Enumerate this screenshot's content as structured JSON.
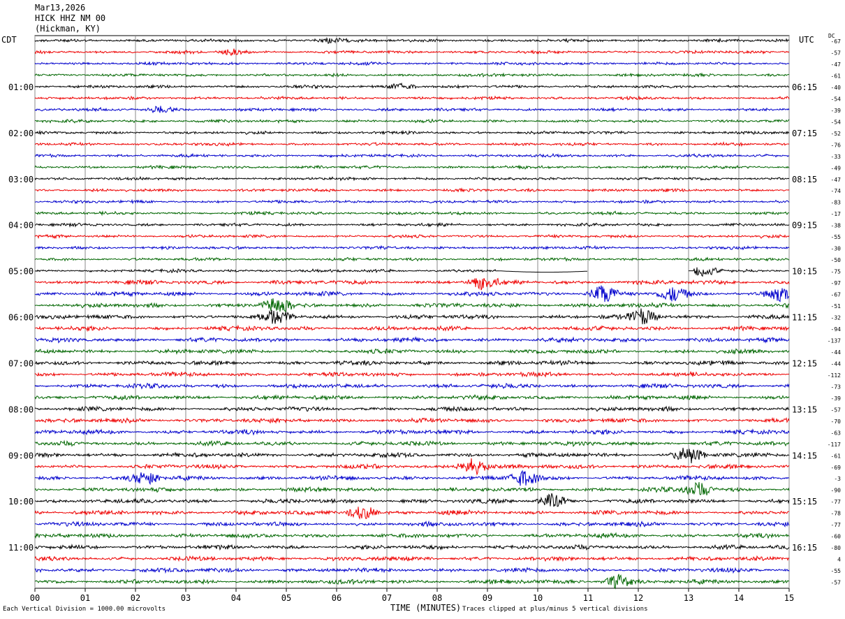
{
  "header": {
    "date": "Mar13,2026",
    "station": "HICK HHZ NM 00",
    "location": "(Hickman, KY)"
  },
  "left_zone": "CDT",
  "right_zone": "UTC",
  "dc_label": "DC",
  "footer": {
    "scale_note": "Each Vertical Division = 1000.00 microvolts",
    "xlabel": "TIME (MINUTES)",
    "clip_note": "Traces clipped at plus/minus 5 vertical divisions"
  },
  "colors": {
    "trace_cycle": [
      "#000000",
      "#ee0000",
      "#0000cc",
      "#006600"
    ],
    "grid": "#888888"
  },
  "chart_data": {
    "type": "line",
    "title": "",
    "xlabel": "TIME (MINUTES)",
    "ylabel": "",
    "xlim": [
      0,
      15
    ],
    "x_ticks": [
      "00",
      "01",
      "02",
      "03",
      "04",
      "05",
      "06",
      "07",
      "08",
      "09",
      "10",
      "11",
      "12",
      "13",
      "14",
      "15"
    ],
    "rows": 48,
    "left_hour_labels": [
      {
        "row": 4,
        "label": "01:00"
      },
      {
        "row": 8,
        "label": "02:00"
      },
      {
        "row": 12,
        "label": "03:00"
      },
      {
        "row": 16,
        "label": "04:00"
      },
      {
        "row": 20,
        "label": "05:00"
      },
      {
        "row": 24,
        "label": "06:00"
      },
      {
        "row": 28,
        "label": "07:00"
      },
      {
        "row": 32,
        "label": "08:00"
      },
      {
        "row": 36,
        "label": "09:00"
      },
      {
        "row": 40,
        "label": "10:00"
      },
      {
        "row": 44,
        "label": "11:00"
      }
    ],
    "right_hour_labels": [
      {
        "row": 4,
        "label": "06:15"
      },
      {
        "row": 8,
        "label": "07:15"
      },
      {
        "row": 12,
        "label": "08:15"
      },
      {
        "row": 16,
        "label": "09:15"
      },
      {
        "row": 20,
        "label": "10:15"
      },
      {
        "row": 24,
        "label": "11:15"
      },
      {
        "row": 28,
        "label": "12:15"
      },
      {
        "row": 32,
        "label": "13:15"
      },
      {
        "row": 36,
        "label": "14:15"
      },
      {
        "row": 40,
        "label": "15:15"
      },
      {
        "row": 44,
        "label": "16:15"
      }
    ],
    "dc_offsets": [
      "-67",
      "-57",
      "-47",
      "-61",
      "-40",
      "-54",
      "-39",
      "-54",
      "-52",
      "-76",
      "-33",
      "-49",
      "-47",
      "-74",
      "-83",
      "-17",
      "-38",
      "-55",
      "-30",
      "-50",
      "-75",
      "-97",
      "-67",
      "-51",
      "-32",
      "-94",
      "-137",
      "-44",
      "-44",
      "-112",
      "-73",
      "-39",
      "-57",
      "-70",
      "-63",
      "-117",
      "-61",
      "-69",
      "-3",
      "-90",
      "-77",
      "-78",
      "-77",
      "-60",
      "-80",
      "4",
      "-55",
      "-57"
    ],
    "events": [
      {
        "row": 0,
        "minute": 5.85,
        "amp": 0.5
      },
      {
        "row": 1,
        "minute": 3.95,
        "amp": 0.5
      },
      {
        "row": 4,
        "minute": 7.3,
        "amp": 0.7
      },
      {
        "row": 6,
        "minute": 2.5,
        "amp": 0.6
      },
      {
        "row": 20,
        "minute": 13.3,
        "amp": 1.0
      },
      {
        "row": 21,
        "minute": 8.9,
        "amp": 1.1
      },
      {
        "row": 22,
        "minute": 11.3,
        "amp": 1.6
      },
      {
        "row": 22,
        "minute": 12.7,
        "amp": 1.2
      },
      {
        "row": 22,
        "minute": 14.8,
        "amp": 1.4
      },
      {
        "row": 23,
        "minute": 4.8,
        "amp": 1.4
      },
      {
        "row": 24,
        "minute": 4.8,
        "amp": 1.2
      },
      {
        "row": 24,
        "minute": 12.1,
        "amp": 1.3
      },
      {
        "row": 36,
        "minute": 13.0,
        "amp": 1.4
      },
      {
        "row": 37,
        "minute": 8.7,
        "amp": 1.6
      },
      {
        "row": 38,
        "minute": 2.2,
        "amp": 1.2
      },
      {
        "row": 38,
        "minute": 9.7,
        "amp": 1.4
      },
      {
        "row": 39,
        "minute": 13.2,
        "amp": 1.3
      },
      {
        "row": 40,
        "minute": 10.3,
        "amp": 1.2
      },
      {
        "row": 41,
        "minute": 6.5,
        "amp": 1.3
      },
      {
        "row": 47,
        "minute": 11.6,
        "amp": 1.2
      }
    ],
    "gap": {
      "row": 20,
      "from_minute": 9.2,
      "to_minute": 13.1
    }
  }
}
